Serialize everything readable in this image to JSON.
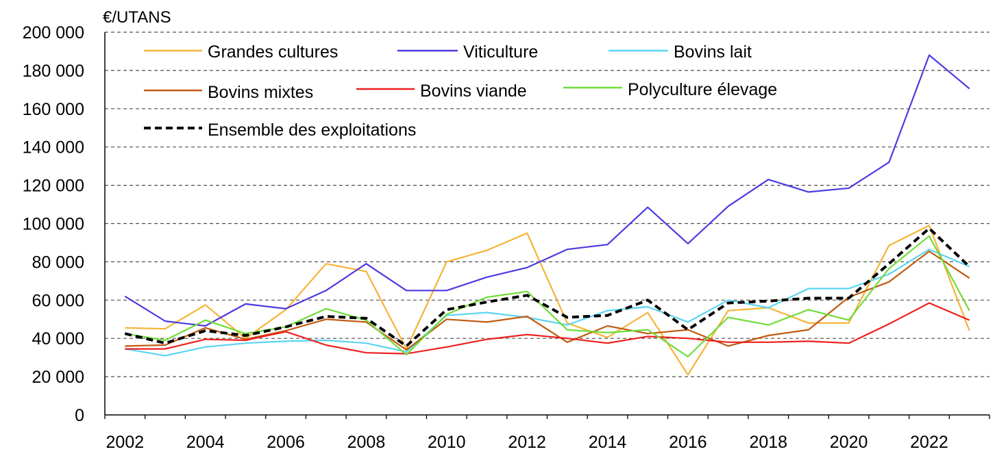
{
  "chart_data": {
    "type": "line",
    "unit_label": "€/UTANS",
    "x": [
      2002,
      2003,
      2004,
      2005,
      2006,
      2007,
      2008,
      2009,
      2010,
      2011,
      2012,
      2013,
      2014,
      2015,
      2016,
      2017,
      2018,
      2019,
      2020,
      2021,
      2022,
      2023
    ],
    "x_ticks": [
      "2002",
      "2004",
      "2006",
      "2008",
      "2010",
      "2012",
      "2014",
      "2016",
      "2018",
      "2020",
      "2022"
    ],
    "ylim": [
      0,
      200000
    ],
    "y_ticks": [
      "0",
      "20 000",
      "40 000",
      "60 000",
      "80 000",
      "100 000",
      "120 000",
      "140 000",
      "160 000",
      "180 000",
      "200 000"
    ],
    "grid": "horizontal dashed",
    "legend_placement": "top",
    "series": [
      {
        "name": "Grandes cultures",
        "color": "#f5b335",
        "dashed": false,
        "values": [
          45500,
          45000,
          57500,
          40000,
          55000,
          79000,
          75000,
          34500,
          80000,
          86000,
          95000,
          48000,
          40500,
          53500,
          21000,
          54500,
          56000,
          48000,
          48000,
          88500,
          99000,
          44000
        ]
      },
      {
        "name": "Viticulture",
        "color": "#4b3ae0",
        "dashed": false,
        "values": [
          62000,
          49000,
          46500,
          58000,
          55500,
          65000,
          79000,
          65000,
          65000,
          72000,
          77000,
          86500,
          89000,
          108500,
          89500,
          109000,
          123000,
          116500,
          118500,
          132000,
          188000,
          170500
        ]
      },
      {
        "name": "Bovins lait",
        "color": "#5ad4f2",
        "dashed": false,
        "values": [
          34500,
          31000,
          35500,
          37500,
          38500,
          39000,
          37500,
          33000,
          52000,
          53500,
          51000,
          47000,
          54500,
          56500,
          48500,
          60000,
          56000,
          66000,
          66000,
          73500,
          86500,
          77500
        ]
      },
      {
        "name": "Bovins mixtes",
        "color": "#c05a10",
        "dashed": false,
        "values": [
          36000,
          36500,
          45500,
          39500,
          44000,
          50000,
          48500,
          34000,
          50000,
          48500,
          51500,
          38000,
          46500,
          42500,
          44500,
          36000,
          41500,
          44500,
          61500,
          69500,
          85500,
          71500
        ]
      },
      {
        "name": "Bovins viande",
        "color": "#ee1f1f",
        "dashed": false,
        "values": [
          34500,
          34500,
          39500,
          39000,
          43500,
          36500,
          32500,
          32000,
          35500,
          39500,
          42000,
          40000,
          37500,
          41000,
          40000,
          38000,
          38000,
          38500,
          37500,
          47500,
          58500,
          49500
        ]
      },
      {
        "name": "Polyculture élevage",
        "color": "#6fdc3a",
        "dashed": false,
        "values": [
          42500,
          39000,
          49500,
          42500,
          46000,
          55500,
          49500,
          31500,
          52500,
          61500,
          64500,
          44500,
          43000,
          44500,
          30500,
          51000,
          47000,
          55000,
          49500,
          76500,
          93500,
          54500
        ]
      },
      {
        "name": "Ensemble des exploitations",
        "color": "#000000",
        "dashed": true,
        "values": [
          42500,
          37500,
          44000,
          41500,
          46000,
          51500,
          50500,
          36000,
          55000,
          59000,
          62500,
          51000,
          52000,
          60000,
          44500,
          58500,
          59500,
          61000,
          61000,
          79000,
          97500,
          77500
        ]
      }
    ]
  }
}
